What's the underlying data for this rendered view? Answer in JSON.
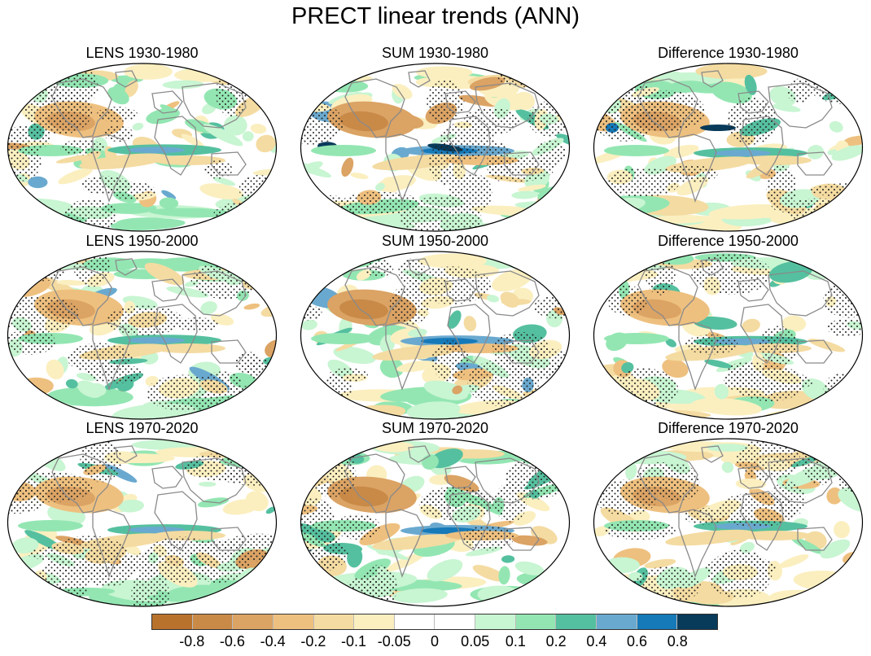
{
  "title": "PRECT linear trends (ANN)",
  "panels": [
    {
      "title": "LENS 1930-1980",
      "variant": 0,
      "tone": "lens"
    },
    {
      "title": "SUM 1930-1980",
      "variant": 1,
      "tone": "sum"
    },
    {
      "title": "Difference 1930-1980",
      "variant": 2,
      "tone": "diff"
    },
    {
      "title": "LENS 1950-2000",
      "variant": 3,
      "tone": "lens"
    },
    {
      "title": "SUM 1950-2000",
      "variant": 4,
      "tone": "sum"
    },
    {
      "title": "Difference 1950-2000",
      "variant": 5,
      "tone": "diff"
    },
    {
      "title": "LENS 1970-2020",
      "variant": 6,
      "tone": "lens"
    },
    {
      "title": "SUM 1970-2020",
      "variant": 7,
      "tone": "sum"
    },
    {
      "title": "Difference 1970-2020",
      "variant": 8,
      "tone": "diff"
    }
  ],
  "colorbar": {
    "colors": [
      "#b8722c",
      "#c98a48",
      "#dba364",
      "#eec07f",
      "#f4dba1",
      "#fbefc0",
      "#ffffff",
      "#ffffff",
      "#c8f5d2",
      "#93e6b2",
      "#55c09f",
      "#6aa9cf",
      "#1679b8",
      "#083a5a"
    ],
    "labels": [
      "-0.8",
      "-0.6",
      "-0.4",
      "-0.2",
      "-0.1",
      "-0.05",
      "0",
      "0.05",
      "0.1",
      "0.2",
      "0.4",
      "0.6",
      "0.8"
    ]
  }
}
